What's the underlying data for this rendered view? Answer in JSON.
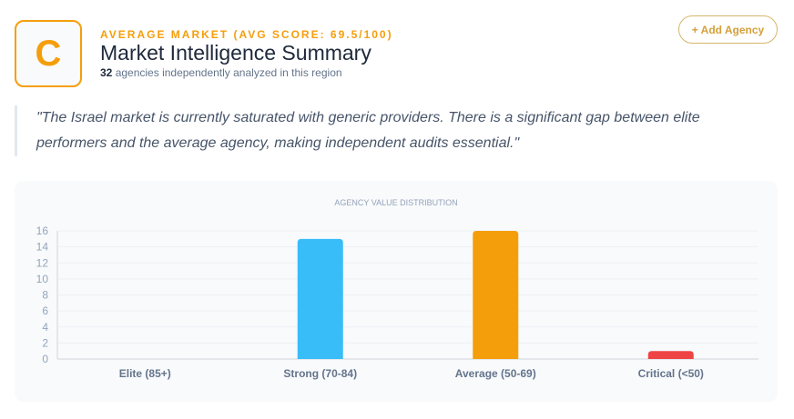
{
  "header": {
    "grade": "C",
    "kicker": "AVERAGE MARKET (AVG SCORE: 69.5/100)",
    "title": "Market Intelligence Summary",
    "count": "32",
    "subtitle": " agencies independently analyzed in this region",
    "add_button": "+ Add Agency"
  },
  "quote": "\"The Israel market is currently saturated with generic providers. There is a significant gap between elite performers and the average agency, making independent audits essential.\"",
  "colors": {
    "accent": "#f59e0b"
  },
  "chart_data": {
    "type": "bar",
    "title": "AGENCY VALUE DISTRIBUTION",
    "categories": [
      "Elite (85+)",
      "Strong (70-84)",
      "Average (50-69)",
      "Critical (<50)"
    ],
    "values": [
      0,
      15,
      16,
      1
    ],
    "colors": [
      "#22c55e",
      "#38bdf8",
      "#f59e0b",
      "#ef4444"
    ],
    "ylim": [
      0,
      16
    ],
    "yticks": [
      0,
      2,
      4,
      6,
      8,
      10,
      12,
      14,
      16
    ],
    "grid": true,
    "legend": "none"
  }
}
